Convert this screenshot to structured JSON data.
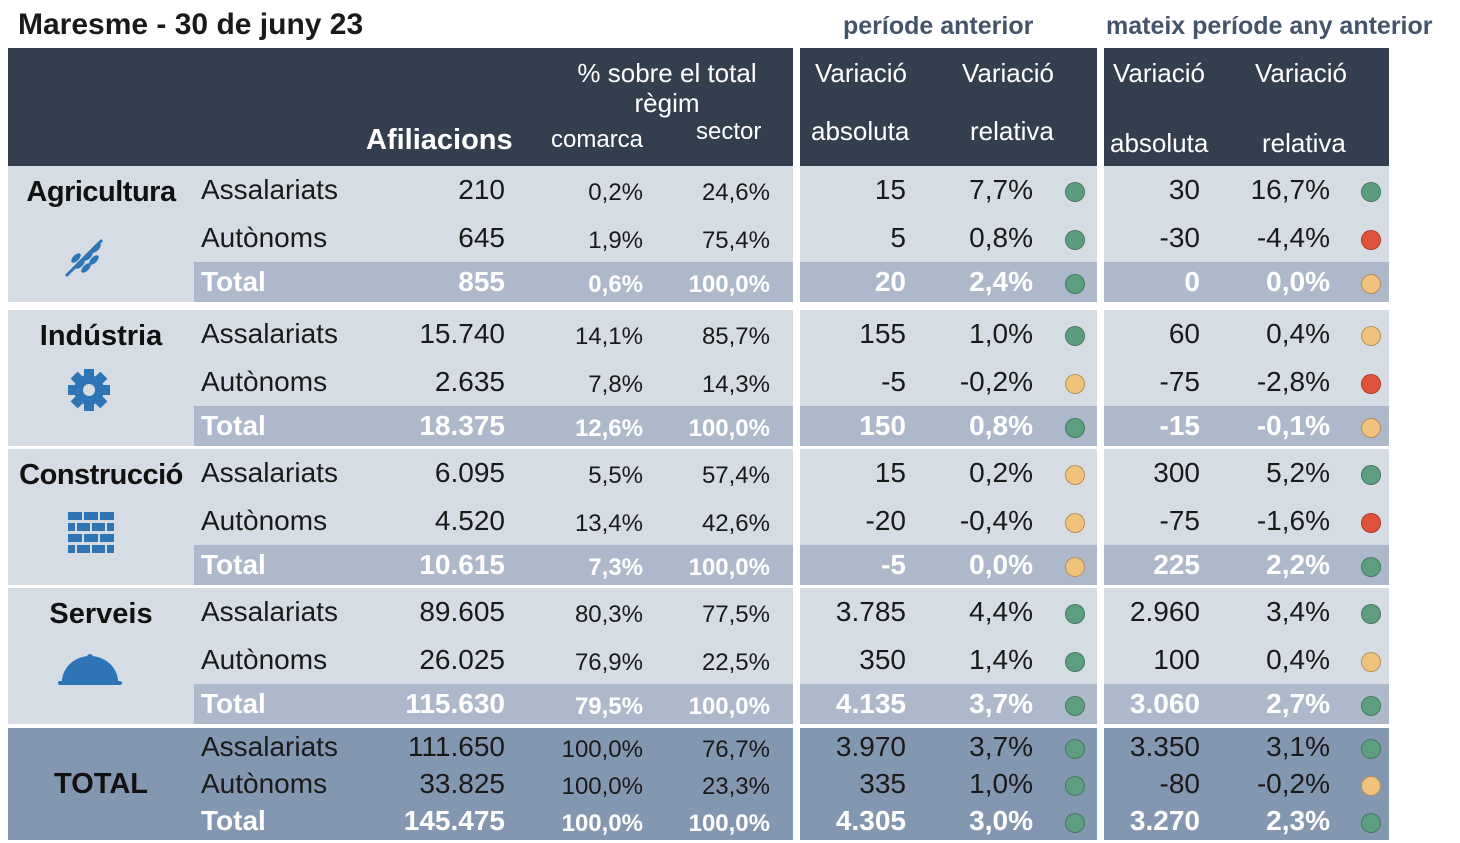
{
  "title": "Maresme - 30 de juny 23",
  "groups": [
    "període anterior",
    "mateix període any anterior"
  ],
  "header": {
    "regime": "% sobre el total règim",
    "afiliacions": "Afiliacions",
    "comarca": "comarca",
    "sector": "sector",
    "variation": [
      "Variació",
      "Variació",
      "Variació",
      "Variació"
    ],
    "sub": [
      "absoluta",
      "relativa",
      "absoluta",
      "relativa"
    ]
  },
  "sections": [
    {
      "name": "Agricultura",
      "rows": [
        {
          "label": "Assalariats",
          "cells": [
            "210",
            "0,2%",
            "24,6%",
            "15",
            "7,7%",
            "30",
            "16,7%"
          ],
          "dots": [
            "#5e9e80",
            "#5e9e80"
          ]
        },
        {
          "label": "Autònoms",
          "cells": [
            "645",
            "1,9%",
            "75,4%",
            "5",
            "0,8%",
            "-30",
            "-4,4%"
          ],
          "dots": [
            "#5e9e80",
            "#e0523a"
          ]
        },
        {
          "label": "Total",
          "cells": [
            "855",
            "0,6%",
            "100,0%",
            "20",
            "2,4%",
            "0",
            "0,0%"
          ],
          "dots": [
            "#5e9e80",
            "#f0c27b"
          ]
        }
      ]
    },
    {
      "name": "Indústria",
      "rows": [
        {
          "label": "Assalariats",
          "cells": [
            "15.740",
            "14,1%",
            "85,7%",
            "155",
            "1,0%",
            "60",
            "0,4%"
          ],
          "dots": [
            "#5e9e80",
            "#f0c27b"
          ]
        },
        {
          "label": "Autònoms",
          "cells": [
            "2.635",
            "7,8%",
            "14,3%",
            "-5",
            "-0,2%",
            "-75",
            "-2,8%"
          ],
          "dots": [
            "#f0c27b",
            "#e0523a"
          ]
        },
        {
          "label": "Total",
          "cells": [
            "18.375",
            "12,6%",
            "100,0%",
            "150",
            "0,8%",
            "-15",
            "-0,1%"
          ],
          "dots": [
            "#5e9e80",
            "#f0c27b"
          ]
        }
      ]
    },
    {
      "name": "Construcció",
      "rows": [
        {
          "label": "Assalariats",
          "cells": [
            "6.095",
            "5,5%",
            "57,4%",
            "15",
            "0,2%",
            "300",
            "5,2%"
          ],
          "dots": [
            "#f0c27b",
            "#5e9e80"
          ]
        },
        {
          "label": "Autònoms",
          "cells": [
            "4.520",
            "13,4%",
            "42,6%",
            "-20",
            "-0,4%",
            "-75",
            "-1,6%"
          ],
          "dots": [
            "#f0c27b",
            "#e0523a"
          ]
        },
        {
          "label": "Total",
          "cells": [
            "10.615",
            "7,3%",
            "100,0%",
            "-5",
            "0,0%",
            "225",
            "2,2%"
          ],
          "dots": [
            "#f0c27b",
            "#5e9e80"
          ]
        }
      ]
    },
    {
      "name": "Serveis",
      "rows": [
        {
          "label": "Assalariats",
          "cells": [
            "89.605",
            "80,3%",
            "77,5%",
            "3.785",
            "4,4%",
            "2.960",
            "3,4%"
          ],
          "dots": [
            "#5e9e80",
            "#5e9e80"
          ]
        },
        {
          "label": "Autònoms",
          "cells": [
            "26.025",
            "76,9%",
            "22,5%",
            "350",
            "1,4%",
            "100",
            "0,4%"
          ],
          "dots": [
            "#5e9e80",
            "#f0c27b"
          ]
        },
        {
          "label": "Total",
          "cells": [
            "115.630",
            "79,5%",
            "100,0%",
            "4.135",
            "3,7%",
            "3.060",
            "2,7%"
          ],
          "dots": [
            "#5e9e80",
            "#5e9e80"
          ]
        }
      ]
    },
    {
      "name": "TOTAL",
      "rows": [
        {
          "label": "Assalariats",
          "cells": [
            "111.650",
            "100,0%",
            "76,7%",
            "3.970",
            "3,7%",
            "3.350",
            "3,1%"
          ],
          "dots": [
            "#5e9e80",
            "#5e9e80"
          ]
        },
        {
          "label": "Autònoms",
          "cells": [
            "33.825",
            "100,0%",
            "23,3%",
            "335",
            "1,0%",
            "-80",
            "-0,2%"
          ],
          "dots": [
            "#5e9e80",
            "#f0c27b"
          ]
        },
        {
          "label": "Total",
          "cells": [
            "145.475",
            "100,0%",
            "100,0%",
            "4.305",
            "3,0%",
            "3.270",
            "2,3%"
          ],
          "dots": [
            "#5e9e80",
            "#5e9e80"
          ]
        }
      ]
    }
  ]
}
